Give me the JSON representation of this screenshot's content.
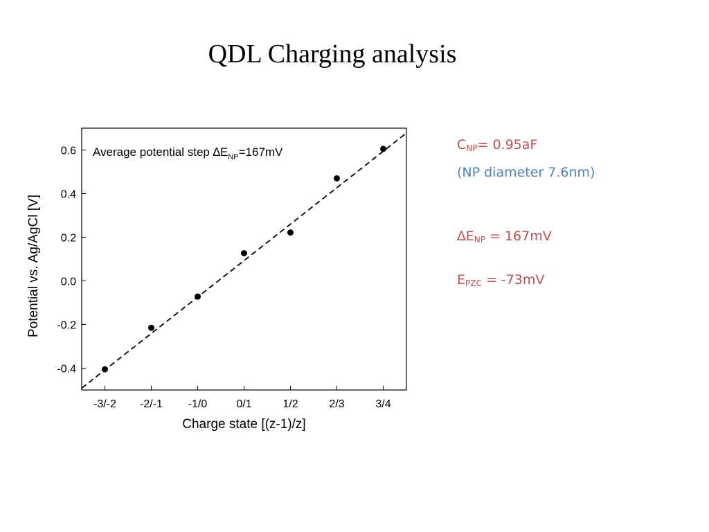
{
  "slide": {
    "title": "QDL Charging analysis"
  },
  "annotations": {
    "cnp": {
      "symbol": "C",
      "sub": "NP",
      "text": "= 0.95aF"
    },
    "diameter": "(NP diameter 7.6nm)",
    "delta_e": {
      "symbol": "∆E",
      "sub": "NP",
      "text": " = 167mV"
    },
    "epzc": {
      "symbol": "E",
      "sub": "PZC",
      "text": " = -73mV"
    }
  },
  "colors": {
    "accent_red": "#c0504d",
    "accent_blue": "#4f81bd"
  },
  "chart_data": {
    "type": "scatter",
    "title": "",
    "xlabel": "Charge state [(z-1)/z]",
    "ylabel": "Potential vs. Ag/AgCl [V]",
    "categories": [
      "-3/-2",
      "-2/-1",
      "-1/0",
      "0/1",
      "1/2",
      "2/3",
      "3/4"
    ],
    "x": [
      -3,
      -2,
      -1,
      0,
      1,
      2,
      3
    ],
    "xlim": [
      -3.5,
      3.5
    ],
    "ylim": [
      -0.5,
      0.7
    ],
    "yticks": [
      -0.4,
      -0.2,
      0.0,
      0.2,
      0.4,
      0.6
    ],
    "ytick_labels": [
      "-0.4",
      "-0.2",
      "0.0",
      "0.2",
      "0.4",
      "0.6"
    ],
    "series": [
      {
        "values": [
          -0.405,
          -0.215,
          -0.072,
          0.127,
          0.222,
          0.47,
          0.605
        ]
      }
    ],
    "fit_line": {
      "style": "dashed",
      "slope": 0.167,
      "intercept": 0.093
    },
    "annotation": {
      "text": "Average potential step ∆E",
      "sub": "NP",
      "suffix": "=167mV"
    },
    "grid": false
  }
}
